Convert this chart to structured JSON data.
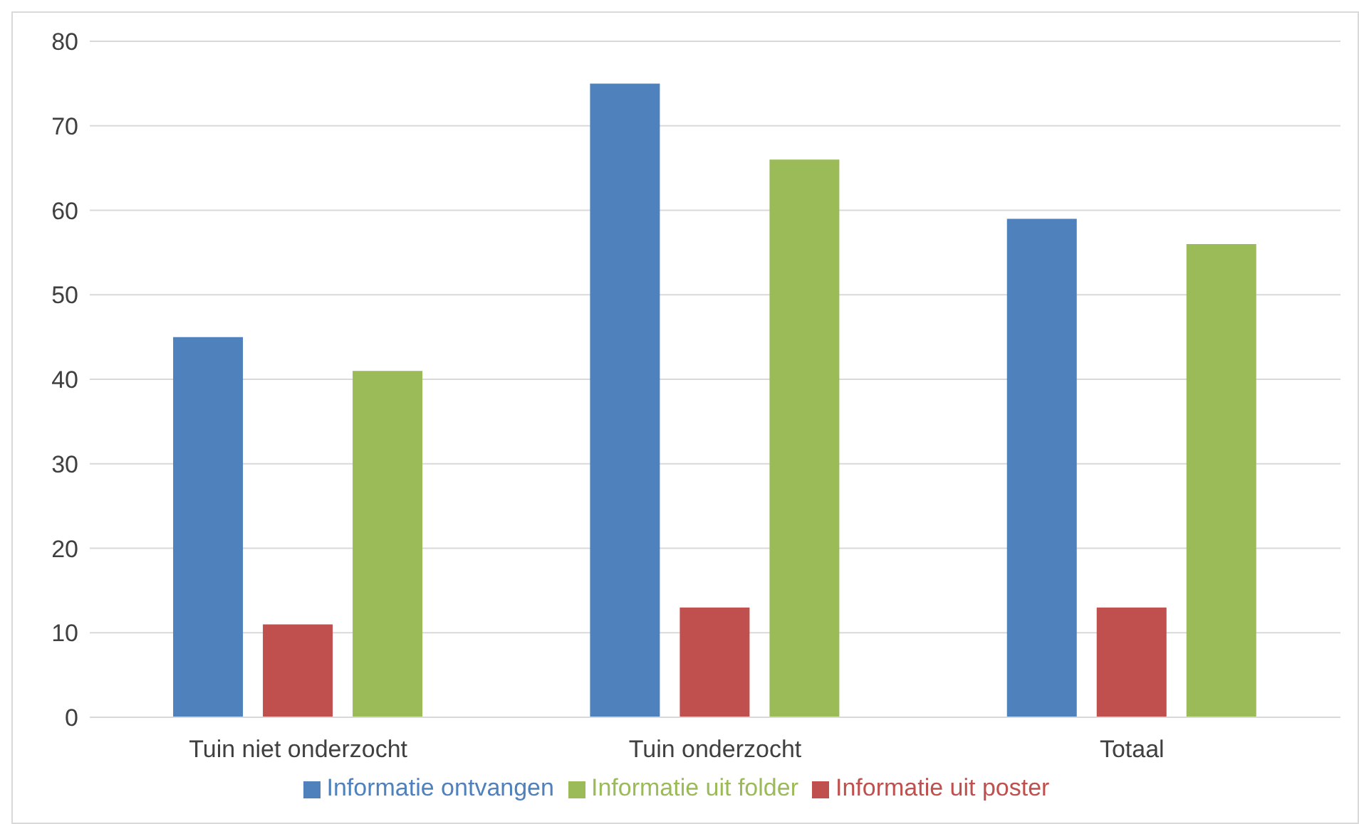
{
  "chart_data": {
    "type": "bar",
    "categories": [
      "Tuin niet onderzocht",
      "Tuin onderzocht",
      "Totaal"
    ],
    "series": [
      {
        "name": "Informatie ontvangen",
        "color": "#4f81bd",
        "values": [
          45,
          75,
          59
        ]
      },
      {
        "name": "Informatie uit poster",
        "color": "#c0504d",
        "values": [
          11,
          13,
          13
        ]
      },
      {
        "name": "Informatie uit folder",
        "color": "#9bbb59",
        "values": [
          41,
          66,
          56
        ]
      }
    ],
    "ylim": [
      0,
      80
    ],
    "yticks": [
      0,
      10,
      20,
      30,
      40,
      50,
      60,
      70,
      80
    ],
    "grid": "y",
    "legend": "bottom"
  }
}
